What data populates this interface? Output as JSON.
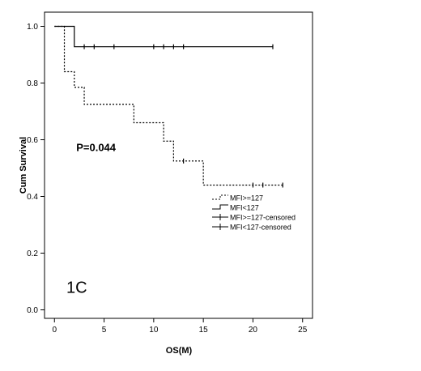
{
  "chart_data": {
    "type": "line",
    "subtype": "kaplan-meier",
    "xlabel": "OS(M)",
    "ylabel": "Cum Survival",
    "xlim": [
      -1,
      26
    ],
    "ylim": [
      -0.03,
      1.05
    ],
    "xticks": [
      0,
      5,
      10,
      15,
      20,
      25
    ],
    "yticks": [
      0.0,
      0.2,
      0.4,
      0.6,
      0.8,
      1.0
    ],
    "ytick_labels": [
      "0.0",
      "0.2",
      "0.4",
      "0.6",
      "0.8",
      "1.0"
    ],
    "grid": false,
    "annotations": [
      {
        "text": "P=0.044",
        "x": 2.2,
        "y": 0.56
      },
      {
        "text": "1C",
        "x": 1.2,
        "y": 0.06
      }
    ],
    "legend": {
      "placement": "right",
      "entries": [
        {
          "label": "MFI>=127",
          "style": "dotted-step"
        },
        {
          "label": "MFI<127",
          "style": "solid-step"
        },
        {
          "label": "MFI>=127-censored",
          "style": "cross"
        },
        {
          "label": "MFI<127-censored",
          "style": "cross"
        }
      ]
    },
    "series": [
      {
        "name": "MFI>=127",
        "style": "dotted",
        "steps": [
          {
            "x": 0,
            "y": 1.0
          },
          {
            "x": 1,
            "y": 0.84
          },
          {
            "x": 2,
            "y": 0.785
          },
          {
            "x": 3,
            "y": 0.725
          },
          {
            "x": 8,
            "y": 0.66
          },
          {
            "x": 11,
            "y": 0.595
          },
          {
            "x": 12,
            "y": 0.525
          },
          {
            "x": 15,
            "y": 0.44
          }
        ],
        "end_x": 23,
        "censored": [
          {
            "x": 13,
            "y": 0.525
          },
          {
            "x": 20,
            "y": 0.44
          },
          {
            "x": 21,
            "y": 0.44
          },
          {
            "x": 23,
            "y": 0.44
          }
        ]
      },
      {
        "name": "MFI<127",
        "style": "solid",
        "steps": [
          {
            "x": 0,
            "y": 1.0
          },
          {
            "x": 2,
            "y": 0.928
          }
        ],
        "end_x": 22,
        "censored": [
          {
            "x": 3,
            "y": 0.928
          },
          {
            "x": 4,
            "y": 0.928
          },
          {
            "x": 6,
            "y": 0.928
          },
          {
            "x": 10,
            "y": 0.928
          },
          {
            "x": 11,
            "y": 0.928
          },
          {
            "x": 12,
            "y": 0.928
          },
          {
            "x": 13,
            "y": 0.928
          },
          {
            "x": 22,
            "y": 0.928
          }
        ]
      }
    ]
  }
}
